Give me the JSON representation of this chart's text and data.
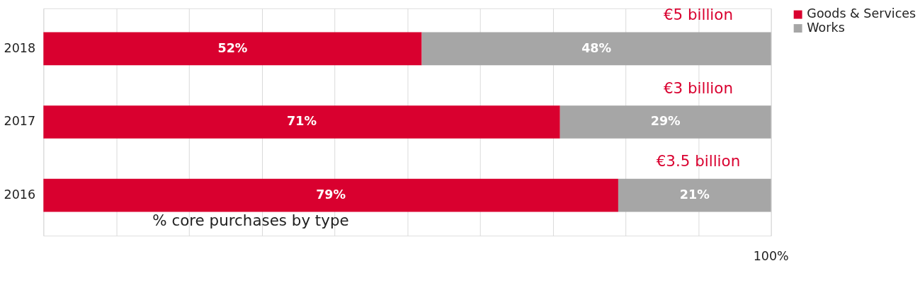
{
  "chart_data": {
    "type": "bar",
    "orientation": "horizontal",
    "stacked": true,
    "xlabel": "% core purchases by type",
    "categories": [
      "2018",
      "2017",
      "2016"
    ],
    "series": [
      {
        "name": "Goods & Services",
        "color": "#d9002f",
        "values": [
          52,
          71,
          79
        ],
        "value_labels": [
          "52%",
          "71%",
          "79%"
        ]
      },
      {
        "name": "Works",
        "color": "#a6a6a6",
        "values": [
          48,
          29,
          21
        ],
        "value_labels": [
          "48%",
          "29%",
          "21%"
        ]
      }
    ],
    "annotations": [
      "€5 billion",
      "€3 billion",
      "€3.5 billion",
      "100%"
    ],
    "grid": "x",
    "legend": "right"
  }
}
